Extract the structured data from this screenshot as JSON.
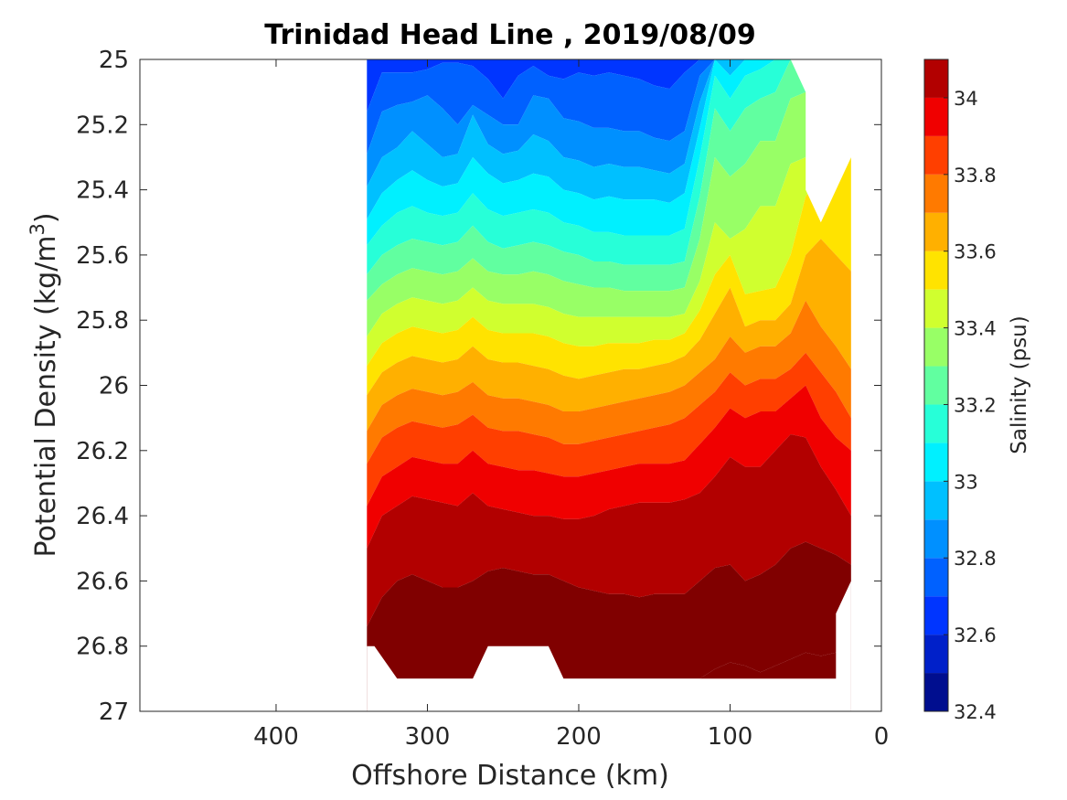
{
  "chart_data": {
    "type": "heatmap",
    "subtype": "filled-contour",
    "title": "Trinidad Head Line , 2019/08/09",
    "xlabel": "Offshore Distance (km)",
    "ylabel_main": "Potential Density (kg/m",
    "ylabel_sup": "3",
    "ylabel_end": ")",
    "xlim": [
      490,
      0
    ],
    "x_reversed": true,
    "ylim": [
      25,
      27
    ],
    "y_reversed": true,
    "x_ticks": [
      400,
      300,
      200,
      100,
      0
    ],
    "x_tick_labels": [
      "400",
      "300",
      "200",
      "100",
      "0"
    ],
    "y_ticks": [
      25,
      25.2,
      25.4,
      25.6,
      25.8,
      26,
      26.2,
      26.4,
      26.6,
      26.8,
      27
    ],
    "y_tick_labels": [
      "25",
      "25.2",
      "25.4",
      "25.6",
      "25.8",
      "26",
      "26.2",
      "26.4",
      "26.6",
      "26.8",
      "27"
    ],
    "colorbar": {
      "label": "Salinity (psu)",
      "range": [
        32.4,
        34.1
      ],
      "tick_values": [
        32.4,
        32.6,
        32.8,
        33,
        33.2,
        33.4,
        33.6,
        33.8,
        34
      ],
      "tick_labels": [
        "32.4",
        "32.6",
        "32.8",
        "33",
        "33.2",
        "33.4",
        "33.6",
        "33.8",
        "34"
      ],
      "levels": [
        32.4,
        32.5,
        32.6,
        32.7,
        32.8,
        32.9,
        33.0,
        33.1,
        33.2,
        33.3,
        33.4,
        33.5,
        33.6,
        33.7,
        33.8,
        33.9,
        34.0,
        34.1
      ],
      "colors": [
        "#000e8f",
        "#0020c9",
        "#0035ff",
        "#0061ff",
        "#0090ff",
        "#00c0ff",
        "#00f0ff",
        "#27ffd8",
        "#61ffa0",
        "#98ff66",
        "#d0ff2f",
        "#ffe300",
        "#ffb000",
        "#ff7a00",
        "#ff3f00",
        "#f00000",
        "#b20000"
      ],
      "extra_color": "#800000"
    },
    "data_extent_x": [
      340,
      20
    ],
    "data_extent_bottom_density": 26.9,
    "stations_x": [
      340,
      330,
      320,
      310,
      300,
      290,
      280,
      270,
      260,
      250,
      240,
      230,
      220,
      210,
      200,
      190,
      180,
      170,
      160,
      150,
      140,
      130,
      120,
      110,
      100,
      90,
      80,
      70,
      60,
      50,
      40,
      30,
      20
    ],
    "contour_levels": [
      32.6,
      32.7,
      32.8,
      32.9,
      33.0,
      33.1,
      33.2,
      33.3,
      33.4,
      33.5,
      33.6,
      33.7,
      33.8,
      33.9,
      34.0,
      34.1
    ],
    "contour_density": [
      [
        25.0,
        25.0,
        25.0,
        25.0,
        25.0,
        25.0,
        25.0,
        25.0,
        25.0,
        25.0,
        25.0,
        25.0,
        25.0,
        25.0,
        25.0,
        25.0,
        25.0,
        25.0,
        25.0,
        25.0,
        25.0,
        25.0,
        25.0,
        25.0,
        25.0,
        25.0,
        25.0,
        25.0,
        25.0,
        25.0,
        25.0,
        25.0,
        25.0
      ],
      [
        25.16,
        25.04,
        25.04,
        25.04,
        25.03,
        25.01,
        25.01,
        25.02,
        25.06,
        25.12,
        25.05,
        25.02,
        25.05,
        25.06,
        25.04,
        25.05,
        25.04,
        25.05,
        25.06,
        25.08,
        25.09,
        25.04,
        25.0,
        25.0,
        25.0,
        25.0,
        25.0,
        25.0,
        25.0,
        25.0,
        25.0,
        25.0,
        25.0
      ],
      [
        25.29,
        25.16,
        25.14,
        25.13,
        25.11,
        25.15,
        25.2,
        25.14,
        25.17,
        25.2,
        25.2,
        25.11,
        25.12,
        25.18,
        25.19,
        25.21,
        25.21,
        25.22,
        25.22,
        25.24,
        25.25,
        25.22,
        25.05,
        25.0,
        25.0,
        25.0,
        25.0,
        25.0,
        25.0,
        25.0,
        25.0,
        25.0,
        25.0
      ],
      [
        25.39,
        25.3,
        25.27,
        25.22,
        25.26,
        25.3,
        25.29,
        25.17,
        25.26,
        25.29,
        25.28,
        25.23,
        25.25,
        25.3,
        25.31,
        25.33,
        25.32,
        25.33,
        25.33,
        25.34,
        25.35,
        25.32,
        25.13,
        25.0,
        25.0,
        25.0,
        25.0,
        25.0,
        25.0,
        25.0,
        25.0,
        25.0,
        25.0
      ],
      [
        25.49,
        25.41,
        25.37,
        25.34,
        25.37,
        25.39,
        25.38,
        25.3,
        25.35,
        25.38,
        25.37,
        25.35,
        25.36,
        25.4,
        25.41,
        25.43,
        25.42,
        25.43,
        25.43,
        25.43,
        25.44,
        25.41,
        25.21,
        25.0,
        25.05,
        25.0,
        25.0,
        25.0,
        25.0,
        25.0,
        25.0,
        25.0,
        25.0
      ],
      [
        25.57,
        25.51,
        25.47,
        25.45,
        25.47,
        25.48,
        25.47,
        25.41,
        25.46,
        25.48,
        25.47,
        25.46,
        25.47,
        25.5,
        25.51,
        25.53,
        25.53,
        25.54,
        25.54,
        25.54,
        25.54,
        25.52,
        25.3,
        25.05,
        25.12,
        25.05,
        25.03,
        25.0,
        25.0,
        25.0,
        25.0,
        25.0,
        25.0
      ],
      [
        25.66,
        25.6,
        25.57,
        25.55,
        25.56,
        25.57,
        25.56,
        25.51,
        25.56,
        25.58,
        25.57,
        25.56,
        25.57,
        25.59,
        25.6,
        25.62,
        25.62,
        25.63,
        25.63,
        25.63,
        25.63,
        25.62,
        25.42,
        25.15,
        25.22,
        25.15,
        25.12,
        25.1,
        25.0,
        25.0,
        25.0,
        25.0,
        25.0
      ],
      [
        25.74,
        25.69,
        25.66,
        25.64,
        25.65,
        25.66,
        25.65,
        25.61,
        25.65,
        25.66,
        25.66,
        25.65,
        25.66,
        25.68,
        25.69,
        25.7,
        25.7,
        25.71,
        25.71,
        25.71,
        25.71,
        25.7,
        25.55,
        25.3,
        25.36,
        25.32,
        25.25,
        25.25,
        25.12,
        25.1,
        25.0,
        25.0,
        25.0
      ],
      [
        25.85,
        25.78,
        25.75,
        25.73,
        25.74,
        25.75,
        25.74,
        25.7,
        25.74,
        25.75,
        25.75,
        25.75,
        25.76,
        25.78,
        25.79,
        25.79,
        25.79,
        25.79,
        25.79,
        25.79,
        25.79,
        25.78,
        25.68,
        25.5,
        25.55,
        25.52,
        25.45,
        25.45,
        25.32,
        25.3,
        25.2,
        25.15,
        25.1
      ],
      [
        25.94,
        25.87,
        25.84,
        25.82,
        25.83,
        25.84,
        25.83,
        25.79,
        25.83,
        25.84,
        25.84,
        25.84,
        25.85,
        25.87,
        25.88,
        25.88,
        25.87,
        25.87,
        25.87,
        25.86,
        25.86,
        25.84,
        25.77,
        25.66,
        25.6,
        25.72,
        25.71,
        25.7,
        25.6,
        25.42,
        25.36,
        25.38,
        25.3
      ],
      [
        26.03,
        25.96,
        25.93,
        25.91,
        25.92,
        25.93,
        25.92,
        25.88,
        25.92,
        25.93,
        25.93,
        25.94,
        25.95,
        25.97,
        25.98,
        25.97,
        25.96,
        25.95,
        25.95,
        25.94,
        25.93,
        25.91,
        25.86,
        25.78,
        25.7,
        25.82,
        25.8,
        25.8,
        25.75,
        25.6,
        25.55,
        25.6,
        25.65
      ],
      [
        26.14,
        26.06,
        26.03,
        26.01,
        26.02,
        26.03,
        26.02,
        25.99,
        26.03,
        26.04,
        26.04,
        26.05,
        26.06,
        26.08,
        26.08,
        26.07,
        26.06,
        26.05,
        26.04,
        26.03,
        26.02,
        26.0,
        25.96,
        25.92,
        25.85,
        25.9,
        25.88,
        25.88,
        25.84,
        25.74,
        25.82,
        25.88,
        25.95
      ],
      [
        26.24,
        26.16,
        26.13,
        26.11,
        26.12,
        26.13,
        26.12,
        26.09,
        26.13,
        26.14,
        26.14,
        26.15,
        26.16,
        26.18,
        26.18,
        26.17,
        26.16,
        26.15,
        26.14,
        26.13,
        26.12,
        26.1,
        26.06,
        26.02,
        25.96,
        26.0,
        25.98,
        25.98,
        25.95,
        25.9,
        25.96,
        26.02,
        26.1
      ],
      [
        26.37,
        26.28,
        26.25,
        26.22,
        26.23,
        26.24,
        26.24,
        26.2,
        26.24,
        26.25,
        26.26,
        26.26,
        26.27,
        26.28,
        26.28,
        26.27,
        26.26,
        26.25,
        26.24,
        26.24,
        26.24,
        26.23,
        26.18,
        26.13,
        26.07,
        26.1,
        26.08,
        26.08,
        26.04,
        26.0,
        26.1,
        26.16,
        26.2
      ],
      [
        26.5,
        26.4,
        26.37,
        26.34,
        26.35,
        26.36,
        26.37,
        26.33,
        26.37,
        26.38,
        26.39,
        26.4,
        26.4,
        26.41,
        26.41,
        26.4,
        26.38,
        26.37,
        26.36,
        26.36,
        26.36,
        26.35,
        26.33,
        26.28,
        26.22,
        26.25,
        26.25,
        26.2,
        26.15,
        26.16,
        26.25,
        26.32,
        26.4
      ],
      [
        26.74,
        26.65,
        26.6,
        26.58,
        26.6,
        26.62,
        26.62,
        26.6,
        26.57,
        26.56,
        26.57,
        26.58,
        26.58,
        26.6,
        26.62,
        26.63,
        26.64,
        26.64,
        26.65,
        26.64,
        26.64,
        26.64,
        26.6,
        26.56,
        26.55,
        26.6,
        26.58,
        26.55,
        26.5,
        26.48,
        26.5,
        26.52,
        26.55
      ],
      [
        26.9,
        26.9,
        26.9,
        26.9,
        26.9,
        26.9,
        26.9,
        26.9,
        26.9,
        26.9,
        26.9,
        26.9,
        26.9,
        26.9,
        26.9,
        26.9,
        26.9,
        26.9,
        26.9,
        26.9,
        26.9,
        26.9,
        26.9,
        26.87,
        26.85,
        26.86,
        26.88,
        26.86,
        26.84,
        26.82,
        26.83,
        26.82,
        26.82
      ]
    ],
    "bottom_boundary": [
      [
        340,
        26.8
      ],
      [
        335,
        26.8
      ],
      [
        320,
        26.9
      ],
      [
        270,
        26.9
      ],
      [
        260,
        26.8
      ],
      [
        220,
        26.8
      ],
      [
        210,
        26.9
      ],
      [
        30,
        26.9
      ],
      [
        30,
        26.7
      ],
      [
        20,
        26.6
      ]
    ],
    "top_boundary": [
      [
        340,
        25.0
      ],
      [
        60,
        25.0
      ],
      [
        50,
        25.1
      ],
      [
        50,
        25.4
      ],
      [
        40,
        25.5
      ],
      [
        20,
        25.3
      ]
    ]
  }
}
